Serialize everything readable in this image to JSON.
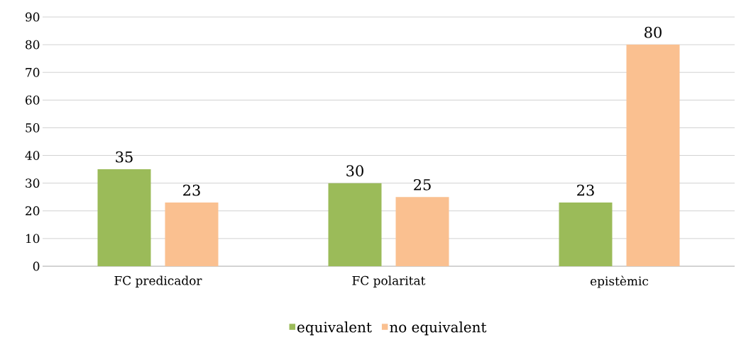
{
  "chart_data": {
    "type": "bar",
    "categories": [
      "FC predicador",
      "FC polaritat",
      "epistèmic"
    ],
    "series": [
      {
        "name": "equivalent",
        "color": "#9bbb59",
        "values": [
          35,
          30,
          23
        ]
      },
      {
        "name": "no equivalent",
        "color": "#fac090",
        "values": [
          23,
          25,
          80
        ]
      }
    ],
    "ylim": [
      0,
      90
    ],
    "yticks": [
      0,
      10,
      20,
      30,
      40,
      50,
      60,
      70,
      80,
      90
    ],
    "grid": "y",
    "legend": "bottom",
    "data_labels": true
  }
}
